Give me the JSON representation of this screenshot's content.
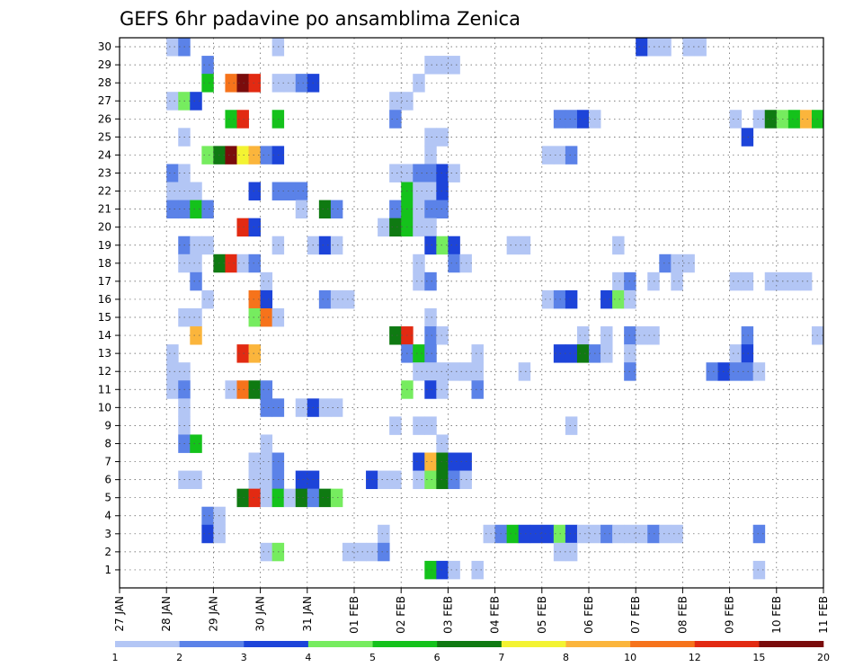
{
  "chart_data": {
    "type": "heatmap",
    "title": "GEFS 6hr padavine po ansamblima Zenica",
    "xlabel": "",
    "ylabel": "",
    "x_ticks": [
      "27 JAN",
      "28 JAN",
      "29 JAN",
      "30 JAN",
      "31 JAN",
      "01 FEB",
      "02 FEB",
      "03 FEB",
      "04 FEB",
      "05 FEB",
      "06 FEB",
      "07 FEB",
      "08 FEB",
      "09 FEB",
      "10 FEB",
      "11 FEB"
    ],
    "y_ticks": [
      "1",
      "2",
      "3",
      "4",
      "5",
      "6",
      "7",
      "8",
      "9",
      "10",
      "11",
      "12",
      "13",
      "14",
      "15",
      "16",
      "17",
      "18",
      "19",
      "20",
      "21",
      "22",
      "23",
      "24",
      "25",
      "26",
      "27",
      "28",
      "29",
      "30"
    ],
    "xlim": [
      0,
      60
    ],
    "ylim": [
      0,
      30
    ],
    "grid": true,
    "legend_position": "bottom",
    "colorbar": {
      "labels": [
        "1",
        "2",
        "3",
        "4",
        "5",
        "6",
        "7",
        "8",
        "10",
        "12",
        "15",
        "20"
      ],
      "colors": [
        "#b3c6f5",
        "#5b82e8",
        "#1d44d9",
        "#76ec5f",
        "#14c21b",
        "#0f7a12",
        "#f3f332",
        "#fbb53c",
        "#f6731b",
        "#e22a12",
        "#7a0c0c"
      ]
    },
    "cells": [
      [
        5,
        30,
        1
      ],
      [
        6,
        30,
        2
      ],
      [
        14,
        30,
        1
      ],
      [
        45,
        30,
        3
      ],
      [
        46,
        30,
        1
      ],
      [
        47,
        30,
        1
      ],
      [
        49,
        30,
        1
      ],
      [
        50,
        30,
        1
      ],
      [
        8,
        29,
        2
      ],
      [
        27,
        29,
        1
      ],
      [
        28,
        29,
        1
      ],
      [
        29,
        29,
        1
      ],
      [
        8,
        28,
        5
      ],
      [
        10,
        28,
        9
      ],
      [
        11,
        28,
        11
      ],
      [
        12,
        28,
        10
      ],
      [
        14,
        28,
        1
      ],
      [
        15,
        28,
        1
      ],
      [
        16,
        28,
        2
      ],
      [
        17,
        28,
        3
      ],
      [
        26,
        28,
        1
      ],
      [
        5,
        27,
        1
      ],
      [
        6,
        27,
        4
      ],
      [
        7,
        27,
        3
      ],
      [
        24,
        27,
        1
      ],
      [
        25,
        27,
        1
      ],
      [
        10,
        26,
        5
      ],
      [
        11,
        26,
        10
      ],
      [
        14,
        26,
        5
      ],
      [
        24,
        26,
        2
      ],
      [
        38,
        26,
        2
      ],
      [
        39,
        26,
        2
      ],
      [
        40,
        26,
        3
      ],
      [
        41,
        26,
        1
      ],
      [
        53,
        26,
        1
      ],
      [
        55,
        26,
        1
      ],
      [
        56,
        26,
        6
      ],
      [
        57,
        26,
        4
      ],
      [
        58,
        26,
        5
      ],
      [
        59,
        26,
        8
      ],
      [
        60,
        26,
        5
      ],
      [
        6,
        25,
        1
      ],
      [
        27,
        25,
        1
      ],
      [
        28,
        25,
        1
      ],
      [
        54,
        25,
        3
      ],
      [
        8,
        24,
        4
      ],
      [
        9,
        24,
        6
      ],
      [
        10,
        24,
        11
      ],
      [
        11,
        24,
        7
      ],
      [
        12,
        24,
        8
      ],
      [
        13,
        24,
        2
      ],
      [
        14,
        24,
        3
      ],
      [
        27,
        24,
        1
      ],
      [
        37,
        24,
        1
      ],
      [
        38,
        24,
        1
      ],
      [
        39,
        24,
        2
      ],
      [
        5,
        23,
        2
      ],
      [
        6,
        23,
        1
      ],
      [
        24,
        23,
        1
      ],
      [
        25,
        23,
        1
      ],
      [
        26,
        23,
        2
      ],
      [
        27,
        23,
        2
      ],
      [
        28,
        23,
        3
      ],
      [
        29,
        23,
        1
      ],
      [
        5,
        22,
        1
      ],
      [
        6,
        22,
        1
      ],
      [
        7,
        22,
        1
      ],
      [
        12,
        22,
        3
      ],
      [
        14,
        22,
        2
      ],
      [
        15,
        22,
        2
      ],
      [
        16,
        22,
        2
      ],
      [
        25,
        22,
        5
      ],
      [
        26,
        22,
        1
      ],
      [
        27,
        22,
        1
      ],
      [
        28,
        22,
        3
      ],
      [
        5,
        21,
        2
      ],
      [
        6,
        21,
        2
      ],
      [
        7,
        21,
        5
      ],
      [
        8,
        21,
        2
      ],
      [
        16,
        21,
        1
      ],
      [
        18,
        21,
        6
      ],
      [
        19,
        21,
        2
      ],
      [
        24,
        21,
        2
      ],
      [
        25,
        21,
        5
      ],
      [
        26,
        21,
        1
      ],
      [
        27,
        21,
        2
      ],
      [
        28,
        21,
        2
      ],
      [
        11,
        20,
        10
      ],
      [
        12,
        20,
        3
      ],
      [
        23,
        20,
        1
      ],
      [
        24,
        20,
        6
      ],
      [
        25,
        20,
        5
      ],
      [
        26,
        20,
        1
      ],
      [
        27,
        20,
        1
      ],
      [
        6,
        19,
        2
      ],
      [
        7,
        19,
        1
      ],
      [
        8,
        19,
        1
      ],
      [
        14,
        19,
        1
      ],
      [
        17,
        19,
        1
      ],
      [
        18,
        19,
        3
      ],
      [
        19,
        19,
        1
      ],
      [
        27,
        19,
        3
      ],
      [
        28,
        19,
        4
      ],
      [
        29,
        19,
        3
      ],
      [
        34,
        19,
        1
      ],
      [
        35,
        19,
        1
      ],
      [
        43,
        19,
        1
      ],
      [
        6,
        18,
        1
      ],
      [
        7,
        18,
        1
      ],
      [
        9,
        18,
        6
      ],
      [
        10,
        18,
        10
      ],
      [
        11,
        18,
        1
      ],
      [
        12,
        18,
        2
      ],
      [
        26,
        18,
        1
      ],
      [
        29,
        18,
        2
      ],
      [
        30,
        18,
        1
      ],
      [
        47,
        18,
        2
      ],
      [
        48,
        18,
        1
      ],
      [
        49,
        18,
        1
      ],
      [
        7,
        17,
        2
      ],
      [
        13,
        17,
        1
      ],
      [
        26,
        17,
        1
      ],
      [
        27,
        17,
        2
      ],
      [
        43,
        17,
        1
      ],
      [
        44,
        17,
        2
      ],
      [
        46,
        17,
        1
      ],
      [
        48,
        17,
        1
      ],
      [
        53,
        17,
        1
      ],
      [
        54,
        17,
        1
      ],
      [
        56,
        17,
        1
      ],
      [
        57,
        17,
        1
      ],
      [
        58,
        17,
        1
      ],
      [
        59,
        17,
        1
      ],
      [
        8,
        16,
        1
      ],
      [
        12,
        16,
        9
      ],
      [
        13,
        16,
        3
      ],
      [
        18,
        16,
        2
      ],
      [
        19,
        16,
        1
      ],
      [
        20,
        16,
        1
      ],
      [
        37,
        16,
        1
      ],
      [
        38,
        16,
        2
      ],
      [
        39,
        16,
        3
      ],
      [
        42,
        16,
        3
      ],
      [
        43,
        16,
        4
      ],
      [
        44,
        16,
        1
      ],
      [
        6,
        15,
        1
      ],
      [
        7,
        15,
        1
      ],
      [
        12,
        15,
        4
      ],
      [
        13,
        15,
        9
      ],
      [
        14,
        15,
        1
      ],
      [
        27,
        15,
        1
      ],
      [
        7,
        14,
        8
      ],
      [
        24,
        14,
        6
      ],
      [
        25,
        14,
        10
      ],
      [
        27,
        14,
        2
      ],
      [
        28,
        14,
        1
      ],
      [
        40,
        14,
        1
      ],
      [
        42,
        14,
        1
      ],
      [
        44,
        14,
        2
      ],
      [
        45,
        14,
        1
      ],
      [
        46,
        14,
        1
      ],
      [
        54,
        14,
        2
      ],
      [
        60,
        14,
        1
      ],
      [
        5,
        13,
        1
      ],
      [
        11,
        13,
        10
      ],
      [
        12,
        13,
        8
      ],
      [
        25,
        13,
        2
      ],
      [
        26,
        13,
        5
      ],
      [
        27,
        13,
        2
      ],
      [
        31,
        13,
        1
      ],
      [
        38,
        13,
        3
      ],
      [
        39,
        13,
        3
      ],
      [
        40,
        13,
        6
      ],
      [
        41,
        13,
        2
      ],
      [
        42,
        13,
        1
      ],
      [
        44,
        13,
        1
      ],
      [
        53,
        13,
        1
      ],
      [
        54,
        13,
        3
      ],
      [
        5,
        12,
        1
      ],
      [
        6,
        12,
        1
      ],
      [
        26,
        12,
        1
      ],
      [
        27,
        12,
        1
      ],
      [
        28,
        12,
        1
      ],
      [
        29,
        12,
        1
      ],
      [
        30,
        12,
        1
      ],
      [
        31,
        12,
        1
      ],
      [
        35,
        12,
        1
      ],
      [
        44,
        12,
        2
      ],
      [
        51,
        12,
        2
      ],
      [
        52,
        12,
        3
      ],
      [
        53,
        12,
        2
      ],
      [
        54,
        12,
        2
      ],
      [
        55,
        12,
        1
      ],
      [
        5,
        11,
        1
      ],
      [
        6,
        11,
        2
      ],
      [
        10,
        11,
        1
      ],
      [
        11,
        11,
        9
      ],
      [
        12,
        11,
        6
      ],
      [
        13,
        11,
        2
      ],
      [
        25,
        11,
        4
      ],
      [
        27,
        11,
        3
      ],
      [
        28,
        11,
        1
      ],
      [
        31,
        11,
        2
      ],
      [
        6,
        10,
        1
      ],
      [
        13,
        10,
        2
      ],
      [
        14,
        10,
        2
      ],
      [
        16,
        10,
        1
      ],
      [
        17,
        10,
        3
      ],
      [
        18,
        10,
        1
      ],
      [
        19,
        10,
        1
      ],
      [
        6,
        9,
        1
      ],
      [
        24,
        9,
        1
      ],
      [
        26,
        9,
        1
      ],
      [
        27,
        9,
        1
      ],
      [
        39,
        9,
        1
      ],
      [
        6,
        8,
        2
      ],
      [
        7,
        8,
        5
      ],
      [
        13,
        8,
        1
      ],
      [
        28,
        8,
        1
      ],
      [
        12,
        7,
        1
      ],
      [
        13,
        7,
        1
      ],
      [
        14,
        7,
        2
      ],
      [
        26,
        7,
        3
      ],
      [
        27,
        7,
        8
      ],
      [
        28,
        7,
        6
      ],
      [
        29,
        7,
        3
      ],
      [
        30,
        7,
        3
      ],
      [
        6,
        6,
        1
      ],
      [
        7,
        6,
        1
      ],
      [
        12,
        6,
        1
      ],
      [
        13,
        6,
        1
      ],
      [
        14,
        6,
        2
      ],
      [
        16,
        6,
        3
      ],
      [
        17,
        6,
        3
      ],
      [
        22,
        6,
        3
      ],
      [
        23,
        6,
        1
      ],
      [
        24,
        6,
        1
      ],
      [
        26,
        6,
        1
      ],
      [
        27,
        6,
        4
      ],
      [
        28,
        6,
        6
      ],
      [
        29,
        6,
        2
      ],
      [
        30,
        6,
        1
      ],
      [
        11,
        5,
        6
      ],
      [
        12,
        5,
        10
      ],
      [
        13,
        5,
        1
      ],
      [
        14,
        5,
        5
      ],
      [
        15,
        5,
        1
      ],
      [
        16,
        5,
        6
      ],
      [
        17,
        5,
        2
      ],
      [
        18,
        5,
        6
      ],
      [
        19,
        5,
        4
      ],
      [
        8,
        4,
        2
      ],
      [
        9,
        4,
        1
      ],
      [
        8,
        3,
        3
      ],
      [
        9,
        3,
        1
      ],
      [
        23,
        3,
        1
      ],
      [
        32,
        3,
        1
      ],
      [
        33,
        3,
        2
      ],
      [
        34,
        3,
        5
      ],
      [
        35,
        3,
        3
      ],
      [
        36,
        3,
        3
      ],
      [
        37,
        3,
        3
      ],
      [
        38,
        3,
        4
      ],
      [
        39,
        3,
        3
      ],
      [
        40,
        3,
        1
      ],
      [
        41,
        3,
        1
      ],
      [
        42,
        3,
        2
      ],
      [
        43,
        3,
        1
      ],
      [
        44,
        3,
        1
      ],
      [
        45,
        3,
        1
      ],
      [
        46,
        3,
        2
      ],
      [
        47,
        3,
        1
      ],
      [
        48,
        3,
        1
      ],
      [
        55,
        3,
        2
      ],
      [
        13,
        2,
        1
      ],
      [
        14,
        2,
        4
      ],
      [
        20,
        2,
        1
      ],
      [
        21,
        2,
        1
      ],
      [
        22,
        2,
        1
      ],
      [
        23,
        2,
        2
      ],
      [
        38,
        2,
        1
      ],
      [
        39,
        2,
        1
      ],
      [
        27,
        1,
        5
      ],
      [
        28,
        1,
        3
      ],
      [
        29,
        1,
        1
      ],
      [
        31,
        1,
        1
      ],
      [
        55,
        1,
        1
      ]
    ]
  }
}
